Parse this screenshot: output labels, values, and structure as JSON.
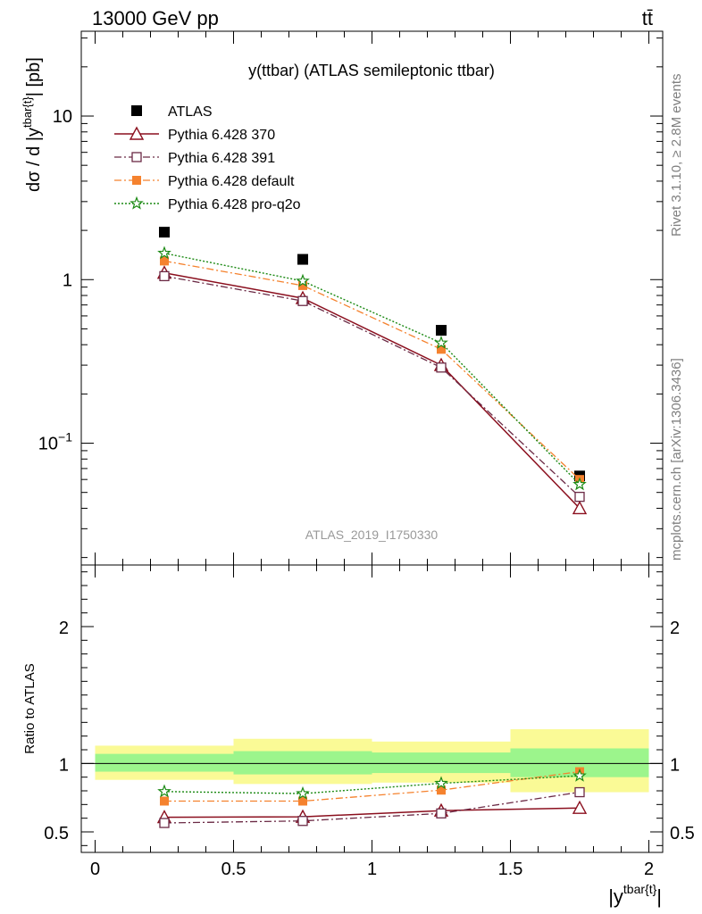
{
  "header": {
    "left": "13000 GeV pp",
    "right": "tt̄"
  },
  "side_text": {
    "rivet": "Rivet 3.1.10, ≥ 2.8M events",
    "mcplots": "mcplots.cern.ch [arXiv:1306.3436]"
  },
  "watermark": "ATLAS_2019_I1750330",
  "colors": {
    "atlas": "#000000",
    "p370": "#8b0f1e",
    "p391": "#6b2a45",
    "pdefault": "#f5822e",
    "pq2o": "#1c8a14",
    "band_inner": "#9cf58c",
    "band_outer": "#fafa96"
  },
  "chart_data": [
    {
      "type": "line",
      "title": "y(ttbar) (ATLAS semileptonic ttbar)",
      "ylabel": "dσ / d |y^tbar{t}| [pb]",
      "xlim": [
        -0.05,
        2.05
      ],
      "ylim": [
        0.018,
        33
      ],
      "yscale": "log",
      "y_ticks": [
        {
          "value": 0.1,
          "base": "10",
          "exp": "−1"
        },
        {
          "value": 1,
          "label": "1"
        },
        {
          "value": 10,
          "label": "10"
        }
      ],
      "legend_position": "top-left",
      "series": [
        {
          "name": "ATLAS",
          "key": "atlas",
          "marker": "square",
          "x": [
            0.25,
            0.75,
            1.25,
            1.75
          ],
          "values": [
            1.95,
            1.33,
            0.49,
            0.063
          ]
        },
        {
          "name": "Pythia 6.428 370",
          "key": "p370",
          "marker": "triangle",
          "x": [
            0.25,
            0.75,
            1.25,
            1.75
          ],
          "values": [
            1.1,
            0.77,
            0.3,
            0.04
          ]
        },
        {
          "name": "Pythia 6.428 391",
          "key": "p391",
          "marker": "open-square",
          "x": [
            0.25,
            0.75,
            1.25,
            1.75
          ],
          "values": [
            1.05,
            0.74,
            0.29,
            0.047
          ]
        },
        {
          "name": "Pythia 6.428 default",
          "key": "pdefault",
          "marker": "filled-square",
          "x": [
            0.25,
            0.75,
            1.25,
            1.75
          ],
          "values": [
            1.3,
            0.92,
            0.375,
            0.06
          ]
        },
        {
          "name": "Pythia 6.428 pro-q2o",
          "key": "pq2o",
          "marker": "star",
          "x": [
            0.25,
            0.75,
            1.25,
            1.75
          ],
          "values": [
            1.45,
            0.98,
            0.41,
            0.056
          ]
        }
      ]
    },
    {
      "type": "line",
      "ylabel": "Ratio to ATLAS",
      "xlabel": "|y^tbar{t}|",
      "xlim": [
        -0.05,
        2.05
      ],
      "ylim": [
        0.35,
        2.45
      ],
      "x_ticks": [
        "0",
        "0.5",
        "1",
        "1.5",
        "2"
      ],
      "y_ticks": [
        "0.5",
        "1",
        "2"
      ],
      "bands": [
        {
          "x0": 0,
          "x1": 0.5,
          "inner": [
            0.94,
            1.07
          ],
          "outer": [
            0.88,
            1.13
          ]
        },
        {
          "x0": 0.5,
          "x1": 1.0,
          "inner": [
            0.92,
            1.09
          ],
          "outer": [
            0.85,
            1.18
          ]
        },
        {
          "x0": 1.0,
          "x1": 1.5,
          "inner": [
            0.93,
            1.08
          ],
          "outer": [
            0.86,
            1.16
          ]
        },
        {
          "x0": 1.5,
          "x1": 2.0,
          "inner": [
            0.9,
            1.11
          ],
          "outer": [
            0.79,
            1.25
          ]
        }
      ],
      "series": [
        {
          "name": "Pythia 6.428 370",
          "key": "p370",
          "marker": "triangle",
          "x": [
            0.25,
            0.75,
            1.25,
            1.75
          ],
          "values": [
            0.607,
            0.61,
            0.655,
            0.675
          ]
        },
        {
          "name": "Pythia 6.428 391",
          "key": "p391",
          "marker": "open-square",
          "x": [
            0.25,
            0.75,
            1.25,
            1.75
          ],
          "values": [
            0.565,
            0.58,
            0.635,
            0.79
          ]
        },
        {
          "name": "Pythia 6.428 default",
          "key": "pdefault",
          "marker": "filled-square",
          "x": [
            0.25,
            0.75,
            1.25,
            1.75
          ],
          "values": [
            0.725,
            0.725,
            0.805,
            0.94
          ]
        },
        {
          "name": "Pythia 6.428 pro-q2o",
          "key": "pq2o",
          "marker": "star",
          "x": [
            0.25,
            0.75,
            1.25,
            1.75
          ],
          "values": [
            0.795,
            0.78,
            0.855,
            0.91
          ]
        }
      ]
    }
  ]
}
